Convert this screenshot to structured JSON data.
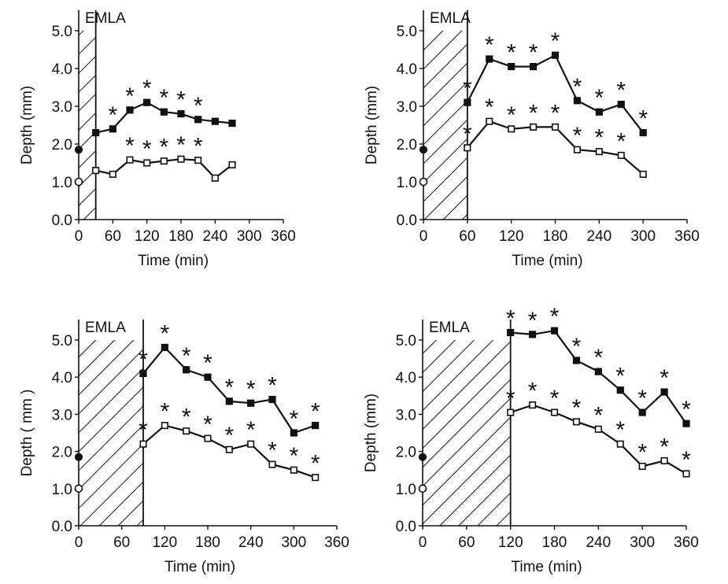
{
  "chart_data": [
    {
      "type": "line",
      "marker_label": "EMLA",
      "application_end_min": 30,
      "xlabel": "Time (min)",
      "ylabel": "Depth (mm)",
      "xlim": [
        0,
        360
      ],
      "ylim": [
        0,
        5.0
      ],
      "x_ticks": [
        "0",
        "60",
        "120",
        "180",
        "240",
        "300",
        "360"
      ],
      "y_ticks": [
        "0.0",
        "1.0",
        "2.0",
        "3.0",
        "4.0",
        "5.0"
      ],
      "series": [
        {
          "marker": "filled",
          "points": [
            [
              0,
              1.85
            ],
            [
              30,
              2.3
            ],
            [
              60,
              2.4
            ],
            [
              90,
              2.9
            ],
            [
              120,
              3.1
            ],
            [
              150,
              2.85
            ],
            [
              180,
              2.8
            ],
            [
              210,
              2.65
            ],
            [
              240,
              2.6
            ],
            [
              270,
              2.55
            ]
          ],
          "significant": [
            false,
            false,
            true,
            true,
            true,
            true,
            true,
            true,
            false,
            false
          ]
        },
        {
          "marker": "open",
          "points": [
            [
              0,
              1.0
            ],
            [
              30,
              1.3
            ],
            [
              60,
              1.2
            ],
            [
              90,
              1.58
            ],
            [
              120,
              1.5
            ],
            [
              150,
              1.55
            ],
            [
              180,
              1.6
            ],
            [
              210,
              1.57
            ],
            [
              240,
              1.1
            ],
            [
              270,
              1.45
            ]
          ],
          "significant": [
            false,
            false,
            false,
            true,
            true,
            true,
            true,
            true,
            false,
            false
          ]
        }
      ]
    },
    {
      "type": "line",
      "marker_label": "EMLA",
      "application_end_min": 60,
      "xlabel": "Time (min)",
      "ylabel": "Depth (mm)",
      "xlim": [
        0,
        360
      ],
      "ylim": [
        0,
        5.0
      ],
      "x_ticks": [
        "0",
        "60",
        "120",
        "180",
        "240",
        "300",
        "360"
      ],
      "y_ticks": [
        "0.0",
        "1.0",
        "2.0",
        "3.0",
        "4.0",
        "5.0"
      ],
      "series": [
        {
          "marker": "filled",
          "points": [
            [
              0,
              1.85
            ],
            [
              60,
              3.1
            ],
            [
              90,
              4.25
            ],
            [
              120,
              4.05
            ],
            [
              150,
              4.05
            ],
            [
              180,
              4.35
            ],
            [
              210,
              3.15
            ],
            [
              240,
              2.85
            ],
            [
              270,
              3.05
            ],
            [
              300,
              2.3
            ]
          ],
          "significant": [
            false,
            true,
            true,
            true,
            true,
            true,
            true,
            true,
            true,
            true
          ]
        },
        {
          "marker": "open",
          "points": [
            [
              0,
              1.0
            ],
            [
              60,
              1.9
            ],
            [
              90,
              2.6
            ],
            [
              120,
              2.4
            ],
            [
              150,
              2.45
            ],
            [
              180,
              2.45
            ],
            [
              210,
              1.85
            ],
            [
              240,
              1.8
            ],
            [
              270,
              1.7
            ],
            [
              300,
              1.2
            ]
          ],
          "significant": [
            false,
            true,
            true,
            true,
            true,
            true,
            true,
            true,
            true,
            false
          ]
        }
      ]
    },
    {
      "type": "line",
      "marker_label": "EMLA",
      "application_end_min": 90,
      "xlabel": "Time (min)",
      "ylabel": "Depth ( mm )",
      "xlim": [
        0,
        360
      ],
      "ylim": [
        0,
        5.0
      ],
      "x_ticks": [
        "0",
        "60",
        "120",
        "180",
        "240",
        "300",
        "360"
      ],
      "y_ticks": [
        "0.0",
        "1.0",
        "2.0",
        "3.0",
        "4.0",
        "5.0"
      ],
      "series": [
        {
          "marker": "filled",
          "points": [
            [
              0,
              1.85
            ],
            [
              90,
              4.1
            ],
            [
              120,
              4.8
            ],
            [
              150,
              4.2
            ],
            [
              180,
              4.0
            ],
            [
              210,
              3.35
            ],
            [
              240,
              3.3
            ],
            [
              270,
              3.4
            ],
            [
              300,
              2.5
            ],
            [
              330,
              2.7
            ]
          ],
          "significant": [
            false,
            true,
            true,
            true,
            true,
            true,
            true,
            true,
            true,
            true
          ]
        },
        {
          "marker": "open",
          "points": [
            [
              0,
              1.0
            ],
            [
              90,
              2.2
            ],
            [
              120,
              2.7
            ],
            [
              150,
              2.55
            ],
            [
              180,
              2.35
            ],
            [
              210,
              2.05
            ],
            [
              240,
              2.2
            ],
            [
              270,
              1.65
            ],
            [
              300,
              1.5
            ],
            [
              330,
              1.3
            ]
          ],
          "significant": [
            false,
            true,
            true,
            true,
            true,
            true,
            true,
            true,
            true,
            true
          ]
        }
      ]
    },
    {
      "type": "line",
      "marker_label": "EMLA",
      "application_end_min": 120,
      "xlabel": "Time (min)",
      "ylabel": "Depth (mm)",
      "xlim": [
        0,
        360
      ],
      "ylim": [
        0,
        5.0
      ],
      "x_ticks": [
        "0",
        "60",
        "120",
        "180",
        "240",
        "300",
        "360"
      ],
      "y_ticks": [
        "0.0",
        "1.0",
        "2.0",
        "3.0",
        "4.0",
        "5.0"
      ],
      "series": [
        {
          "marker": "filled",
          "points": [
            [
              0,
              1.85
            ],
            [
              120,
              5.2
            ],
            [
              150,
              5.15
            ],
            [
              180,
              5.25
            ],
            [
              210,
              4.45
            ],
            [
              240,
              4.15
            ],
            [
              270,
              3.65
            ],
            [
              300,
              3.05
            ],
            [
              330,
              3.6
            ],
            [
              360,
              2.75
            ]
          ],
          "significant": [
            false,
            true,
            true,
            true,
            true,
            true,
            true,
            true,
            true,
            true
          ]
        },
        {
          "marker": "open",
          "points": [
            [
              0,
              1.0
            ],
            [
              120,
              3.05
            ],
            [
              150,
              3.25
            ],
            [
              180,
              3.05
            ],
            [
              210,
              2.8
            ],
            [
              240,
              2.6
            ],
            [
              270,
              2.2
            ],
            [
              300,
              1.6
            ],
            [
              330,
              1.75
            ],
            [
              360,
              1.4
            ]
          ],
          "significant": [
            false,
            true,
            true,
            true,
            true,
            true,
            true,
            true,
            true,
            true
          ]
        }
      ]
    }
  ]
}
